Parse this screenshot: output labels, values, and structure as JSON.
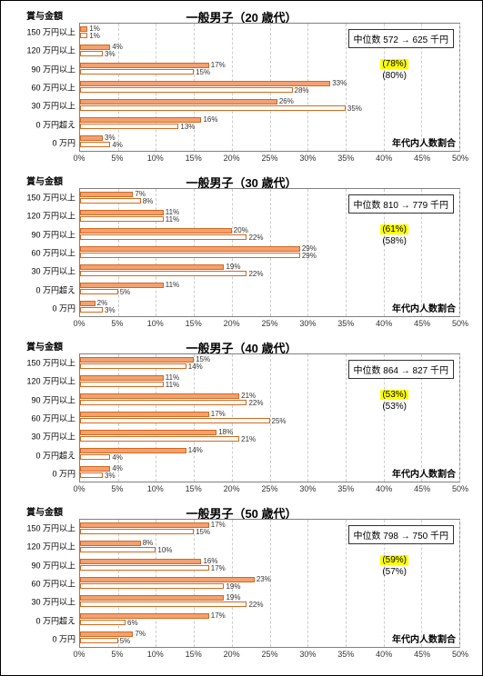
{
  "xmax": 50,
  "xtick_step": 5,
  "bar_color": "#f4a070",
  "bar_border": "#d2691e",
  "grid_color": "#cccccc",
  "categories": [
    "150 万円以上",
    "120 万円以上",
    "90 万円以上",
    "60 万円以上",
    "30 万円以上",
    "0 万円超え",
    "0 万円"
  ],
  "y_title": "賞与金額",
  "x_title": "年代内人数割合",
  "x_ticks": [
    "0%",
    "5%",
    "10%",
    "15%",
    "20%",
    "25%",
    "30%",
    "35%",
    "40%",
    "45%",
    "50%"
  ],
  "charts": [
    {
      "title": "一般男子（20 歳代）",
      "median": "中位数 572 → 625 千円",
      "pct_hl": "(78%)",
      "pct_sub": "(80%)",
      "series1": [
        1,
        4,
        17,
        33,
        26,
        16,
        3
      ],
      "series2": [
        1,
        3,
        15,
        28,
        35,
        13,
        4
      ]
    },
    {
      "title": "一般男子（30 歳代）",
      "median": "中位数 810 → 779 千円",
      "pct_hl": "(61%)",
      "pct_sub": "(58%)",
      "series1": [
        7,
        11,
        20,
        29,
        19,
        11,
        2
      ],
      "series2": [
        8,
        11,
        22,
        29,
        22,
        5,
        3
      ]
    },
    {
      "title": "一般男子（40 歳代）",
      "median": "中位数 864 → 827 千円",
      "pct_hl": "(53%)",
      "pct_sub": "(53%)",
      "series1": [
        15,
        11,
        21,
        17,
        18,
        14,
        4
      ],
      "series2": [
        14,
        11,
        22,
        25,
        21,
        4,
        3
      ]
    },
    {
      "title": "一般男子（50 歳代）",
      "median": "中位数 798 → 750 千円",
      "pct_hl": "(59%)",
      "pct_sub": "(57%)",
      "series1": [
        17,
        8,
        16,
        23,
        19,
        17,
        7
      ],
      "series2": [
        15,
        10,
        17,
        19,
        22,
        6,
        5
      ]
    }
  ]
}
